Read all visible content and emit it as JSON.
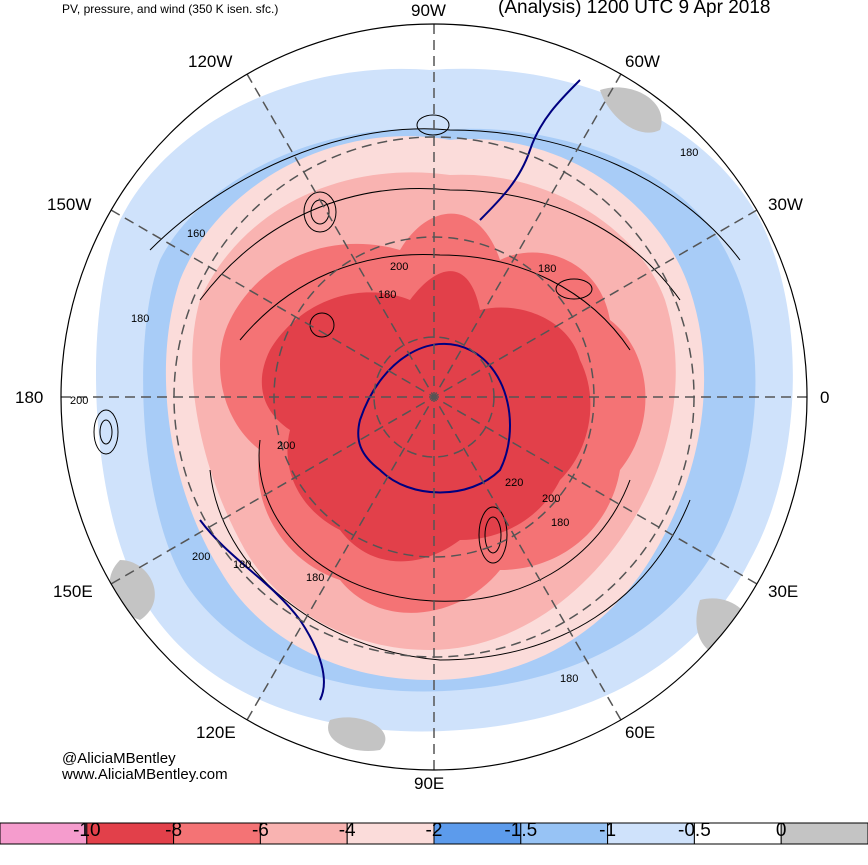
{
  "header": {
    "left": "PV, pressure, and wind (350 K isen. sfc.)",
    "right": "(Analysis) 1200 UTC 9 Apr 2018"
  },
  "credits": {
    "handle": "@AliciaMBentley",
    "site": "www.AliciaMBentley.com"
  },
  "longitude_labels": {
    "top": "90W",
    "upper_left": "120W",
    "upper_right": "60W",
    "left_upper": "150W",
    "right_upper": "30W",
    "left": "180",
    "right": "0",
    "left_lower": "150E",
    "right_lower": "30E",
    "lower_left": "120E",
    "lower_right": "60E",
    "bottom": "90E"
  },
  "contour_labels": [
    "180",
    "160",
    "180",
    "200",
    "180",
    "200",
    "180",
    "200",
    "220",
    "200",
    "180",
    "200",
    "180",
    "180",
    "180"
  ],
  "colorbar": {
    "colors": [
      "#f59ccd",
      "#e2404a",
      "#f47375",
      "#f9b3b1",
      "#fbdcda",
      "#5c9bec",
      "#97c3f5",
      "#cfe2fb",
      "#ffffff",
      "#c4c4c4"
    ],
    "tick_labels": [
      "-10",
      "-8",
      "-6",
      "-4",
      "-2",
      "-1.5",
      "-1",
      "-0.5",
      "0"
    ]
  },
  "colors": {
    "map_fill_low": "#cfe2fb",
    "map_fill_mid": "#fbdcda",
    "map_fill_high": "#e2404a",
    "coastline": "#000080"
  }
}
